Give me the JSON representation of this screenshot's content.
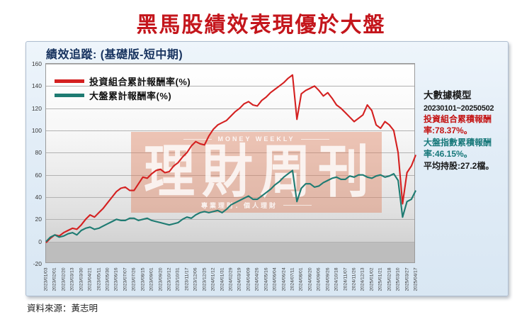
{
  "page": {
    "title": "黑馬股績效表現優於大盤",
    "title_color": "#c4161c",
    "source": "資料來源：黃志明"
  },
  "card": {
    "header": "績效追蹤: (基礎版-短中期)"
  },
  "panel": {
    "title": "大數據模型",
    "period": "20230101~20250502",
    "stat_portfolio": "投資組合累積報酬率:78.37%。",
    "stat_market": "大盤指數累積報酬率:46.15%。",
    "stat_holdings": "平均持股:27.2檔。",
    "portfolio_color": "#c41414",
    "market_color": "#17787a"
  },
  "watermark": {
    "top": "MONEY WEEKLY",
    "main": "理財周刊",
    "bottom": "專業理財．個人理財"
  },
  "chart_data": {
    "type": "line",
    "title": "績效追蹤: (基礎版-短中期)",
    "ylabel": "",
    "xlabel": "",
    "ylim": [
      -20,
      160
    ],
    "y_ticks": [
      160,
      140,
      120,
      100,
      80,
      60,
      40,
      20,
      0,
      -20
    ],
    "grid": true,
    "legend_position": "top-left",
    "x_tick_labels": [
      "2023/01/03",
      "2023/02/01",
      "2023/02/20",
      "2023/03/13",
      "2023/03/30",
      "2023/04/21",
      "2023/05/11",
      "2023/05/30",
      "2023/06/16",
      "2023/07/07",
      "2023/07/26",
      "2023/08/15",
      "2023/09/01",
      "2023/09/20",
      "2023/10/12",
      "2023/10/31",
      "2023/11/17",
      "2023/12/06",
      "2023/12/25",
      "2024/01/12",
      "2024/01/31",
      "2024/02/29",
      "2024/03/19",
      "2024/04/09",
      "2024/04/26",
      "2024/05/16",
      "2024/06/04",
      "2024/06/24",
      "2024/07/11",
      "2024/08/01",
      "2024/08/20",
      "2024/09/06",
      "2024/09/26",
      "2024/10/18",
      "2024/11/07",
      "2024/11/26",
      "2024/12/13",
      "2025/01/02",
      "2025/01/21",
      "2025/02/18",
      "2025/03/10",
      "2025/03/27",
      "2025/04/17"
    ],
    "samples_per_label_interval": 2,
    "series": [
      {
        "name": "投資組合累計報酬率(%)",
        "color": "#d42020",
        "final_value": 78.37,
        "values": [
          -1,
          3,
          6,
          5,
          8,
          10,
          12,
          11,
          15,
          20,
          24,
          22,
          26,
          30,
          35,
          40,
          45,
          48,
          49,
          46,
          46,
          52,
          58,
          57,
          61,
          64,
          65,
          62,
          63,
          68,
          71,
          76,
          80,
          86,
          90,
          88,
          87,
          95,
          101,
          105,
          107,
          109,
          113,
          117,
          120,
          124,
          126,
          123,
          122,
          127,
          130,
          134,
          137,
          140,
          143,
          147,
          150,
          110,
          133,
          136,
          138,
          140,
          136,
          131,
          134,
          129,
          123,
          120,
          116,
          112,
          108,
          111,
          114,
          123,
          118,
          105,
          102,
          108,
          105,
          100,
          80,
          34,
          62,
          68,
          78
        ]
      },
      {
        "name": "大盤累計報酬率(%)",
        "color": "#1e7b72",
        "final_value": 46.15,
        "values": [
          0,
          4,
          6,
          4,
          5,
          7,
          8,
          6,
          10,
          12,
          13,
          11,
          12,
          14,
          16,
          18,
          20,
          19,
          19,
          21,
          21,
          19,
          20,
          21,
          19,
          18,
          17,
          16,
          15,
          16,
          17,
          20,
          22,
          21,
          24,
          26,
          27,
          26,
          27,
          28,
          26,
          29,
          33,
          35,
          37,
          39,
          41,
          38,
          38,
          41,
          44,
          47,
          51,
          54,
          58,
          61,
          64,
          36,
          48,
          52,
          52,
          49,
          50,
          53,
          55,
          57,
          58,
          56,
          56,
          59,
          58,
          60,
          60,
          58,
          57,
          59,
          60,
          58,
          59,
          61,
          55,
          22,
          36,
          38,
          46
        ]
      }
    ]
  }
}
